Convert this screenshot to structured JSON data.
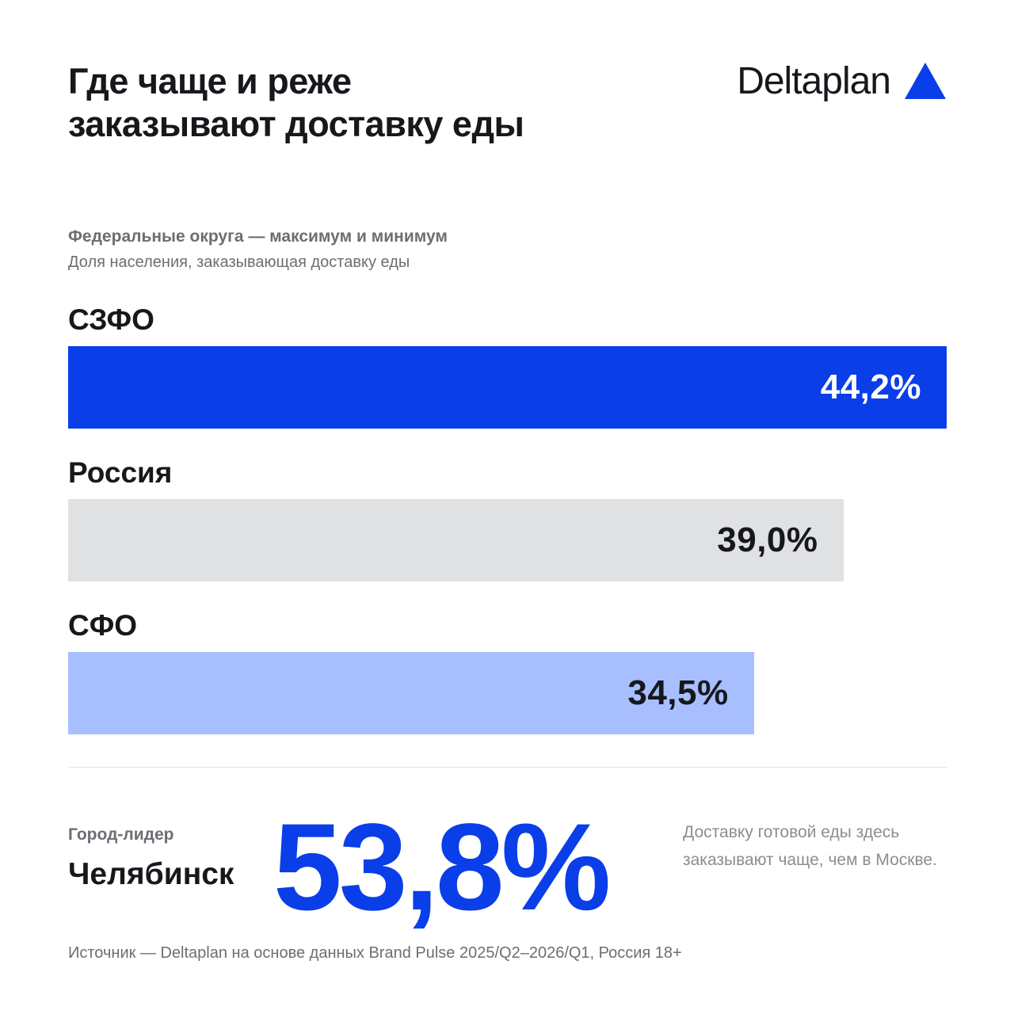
{
  "title": "Где чаще и реже заказывают доставку еды",
  "logo": {
    "text": "Deltaplan",
    "icon": "triangle-icon",
    "icon_color": "#0a3ee8"
  },
  "chart_data": {
    "type": "bar",
    "orientation": "horizontal",
    "subtitle": "Федеральные округа — максимум и минимум",
    "caption": "Доля населения, заказывающая доставку еды",
    "categories": [
      "СЗФО",
      "Россия",
      "СФО"
    ],
    "values": [
      44.2,
      39.0,
      34.5
    ],
    "value_labels": [
      "44,2%",
      "39,0%",
      "34,5%"
    ],
    "colors": [
      "#0a3ee8",
      "#e0e1e3",
      "#a8bfff"
    ],
    "label_colors": [
      "#ffffff",
      "#16181c",
      "#16181c"
    ],
    "unit": "%"
  },
  "leader": {
    "label": "Город-лидер",
    "city": "Челябинск",
    "value": "53,8%",
    "note": "Доставку готовой еды здесь заказывают чаще, чем в Москве."
  },
  "source": "Источник — Deltaplan на основе данных Brand Pulse 2025/Q2–2026/Q1, Россия 18+"
}
